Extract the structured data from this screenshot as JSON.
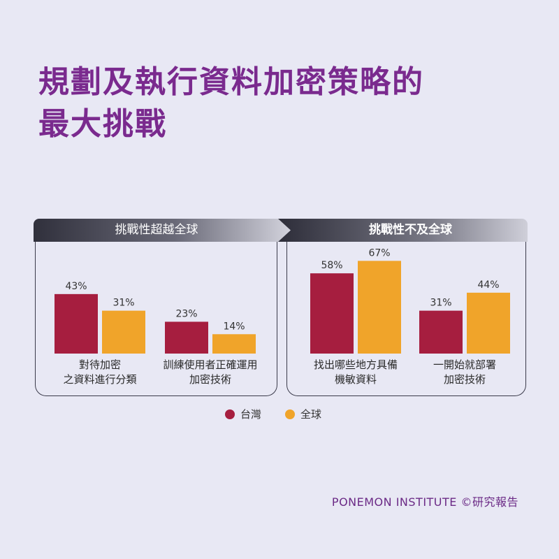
{
  "title": {
    "line1": "規劃及執行資料加密策略的",
    "line2": "最大挑戰"
  },
  "groups": {
    "left": {
      "label": "挑戰性超越全球"
    },
    "right": {
      "label": "挑戰性不及全球"
    }
  },
  "colors": {
    "taiwan": "#a61e3f",
    "global": "#f0a42a"
  },
  "legend": {
    "taiwan": "台灣",
    "global": "全球"
  },
  "source": "PONEMON INSTITUTE ©研究報告",
  "chart_data": {
    "type": "bar",
    "categories": [
      [
        "對待加密",
        "之資料進行分類"
      ],
      [
        "訓練使用者正確運用",
        "加密技術"
      ],
      [
        "找出哪些地方具備",
        "機敏資料"
      ],
      [
        "一開始就部署",
        "加密技術"
      ]
    ],
    "series": [
      {
        "name": "台灣",
        "values": [
          43,
          23,
          58,
          31
        ],
        "labels": [
          "43%",
          "23%",
          "58%",
          "31%"
        ]
      },
      {
        "name": "全球",
        "values": [
          31,
          14,
          67,
          44
        ],
        "labels": [
          "31%",
          "14%",
          "67%",
          "44%"
        ]
      }
    ]
  }
}
